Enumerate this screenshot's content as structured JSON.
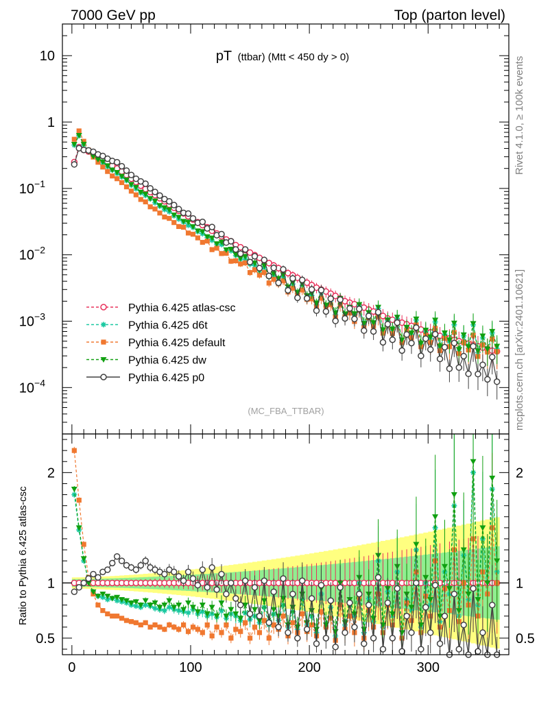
{
  "header": {
    "left": "7000 GeV pp",
    "right": "Top (parton level)"
  },
  "side": {
    "rivet": "Rivet 4.1.0, ≥ 100k events",
    "mcplots": "mcplots.cern.ch [arXiv:2401.10621]"
  },
  "chart_data": {
    "type": "scatter",
    "title_main": "pT",
    "title_sub": "(ttbar) (Mtt < 450 dy > 0)",
    "analysis_tag": "(MC_FBA_TTBAR)",
    "x_ticks": [
      "0",
      "100",
      "200",
      "300"
    ],
    "xlim": [
      -8,
      368
    ],
    "upper": {
      "yscale": "log",
      "ylim": [
        2e-05,
        30
      ],
      "y_tick_labels": [
        {
          "value": 10,
          "base": "10",
          "exp": ""
        },
        {
          "value": 1,
          "base": "1",
          "exp": ""
        },
        {
          "value": 0.1,
          "base": "10",
          "exp": "−1"
        },
        {
          "value": 0.01,
          "base": "10",
          "exp": "−2"
        },
        {
          "value": 0.001,
          "base": "10",
          "exp": "−3"
        },
        {
          "value": 0.0001,
          "base": "10",
          "exp": "−4"
        }
      ]
    },
    "ratio": {
      "ylabel": "Ratio to Pythia 6.425 atlas-csc",
      "ylim": [
        0.35,
        2.35
      ],
      "y_ticks": [
        "0.5",
        "1",
        "2"
      ],
      "reference": 1.0
    },
    "legend": [
      "Pythia 6.425 atlas-csc",
      "Pythia 6.425 d6t",
      "Pythia 6.425 default",
      "Pythia 6.425 dw",
      "Pythia 6.425 p0"
    ],
    "series": [
      {
        "name": "Pythia 6.425 atlas-csc",
        "color": "#e8305a",
        "marker": "open-circle",
        "line": "dashed",
        "x_start": 2,
        "x_step": 4,
        "values": [
          0.25,
          0.42,
          0.38,
          0.36,
          0.33,
          0.31,
          0.28,
          0.25,
          0.22,
          0.2,
          0.18,
          0.16,
          0.14,
          0.125,
          0.11,
          0.098,
          0.088,
          0.079,
          0.071,
          0.064,
          0.057,
          0.051,
          0.046,
          0.042,
          0.038,
          0.034,
          0.031,
          0.028,
          0.026,
          0.023,
          0.021,
          0.019,
          0.017,
          0.016,
          0.014,
          0.013,
          0.0118,
          0.0108,
          0.0099,
          0.009,
          0.0082,
          0.0075,
          0.0069,
          0.0063,
          0.0058,
          0.0053,
          0.0049,
          0.0045,
          0.0041,
          0.0038,
          0.0035,
          0.0032,
          0.003,
          0.0028,
          0.0026,
          0.0024,
          0.0022,
          0.002,
          0.0019,
          0.0018,
          0.0017,
          0.0016,
          0.0015,
          0.0014,
          0.0013,
          0.0012,
          0.0011,
          0.00105,
          0.001,
          0.00095,
          0.0009,
          0.00085,
          0.0008,
          0.00075,
          0.0007,
          0.00068,
          0.00065,
          0.0006,
          0.00058,
          0.00055,
          0.00052,
          0.0005,
          0.00048,
          0.00046,
          0.00044,
          0.00042,
          0.0004,
          0.00038,
          0.00036,
          0.00035
        ]
      },
      {
        "name": "Pythia 6.425 d6t",
        "color": "#18c8a0",
        "marker": "star",
        "line": "dashed",
        "ratio": [
          1.8,
          1.48,
          1.2,
          1.02,
          0.92,
          0.88,
          0.87,
          0.85,
          0.86,
          0.84,
          0.83,
          0.82,
          0.8,
          0.79,
          0.78,
          0.8,
          0.79,
          0.77,
          0.76,
          0.75,
          0.78,
          0.76,
          0.75,
          0.74,
          0.73,
          0.76,
          0.72,
          0.74,
          0.7,
          0.72,
          0.69,
          0.75,
          0.68,
          0.72,
          0.7,
          0.66,
          0.73,
          0.67,
          0.7,
          0.64,
          0.78,
          0.62,
          0.72,
          0.66,
          0.8,
          0.6,
          0.74,
          0.58,
          0.85,
          0.62,
          0.7,
          0.55,
          0.9,
          0.6,
          0.78,
          0.52,
          0.95,
          0.62,
          0.8,
          0.7,
          1.0,
          0.55,
          0.86,
          0.65,
          1.2,
          0.6,
          0.92,
          0.7,
          1.1,
          0.5,
          0.85,
          0.75,
          1.3,
          0.6,
          1.0,
          0.8,
          1.5,
          0.65,
          1.1,
          0.9,
          1.7,
          0.7,
          1.25,
          0.85,
          2.0,
          0.8,
          1.4,
          0.9,
          1.85,
          1.1
        ]
      },
      {
        "name": "Pythia 6.425 default",
        "color": "#f07830",
        "marker": "square",
        "line": "dashed",
        "ratio": [
          2.2,
          1.75,
          1.35,
          1.05,
          0.9,
          0.8,
          0.75,
          0.72,
          0.7,
          0.7,
          0.68,
          0.66,
          0.65,
          0.64,
          0.62,
          0.64,
          0.6,
          0.62,
          0.6,
          0.58,
          0.62,
          0.6,
          0.58,
          0.62,
          0.56,
          0.6,
          0.58,
          0.55,
          0.62,
          0.52,
          0.6,
          0.55,
          0.62,
          0.5,
          0.58,
          0.56,
          0.64,
          0.5,
          0.6,
          0.55,
          0.66,
          0.5,
          0.62,
          0.58,
          0.7,
          0.52,
          0.64,
          0.55,
          0.72,
          0.56,
          0.62,
          0.52,
          0.74,
          0.6,
          0.68,
          0.48,
          0.8,
          0.58,
          0.7,
          0.55,
          0.86,
          0.5,
          0.75,
          0.6,
          0.9,
          0.55,
          0.8,
          0.62,
          0.95,
          0.5,
          0.82,
          0.66,
          1.1,
          0.55,
          0.88,
          0.7,
          1.2,
          0.6,
          0.95,
          0.75,
          1.3,
          0.65,
          1.0,
          0.8,
          1.4,
          0.7,
          1.1,
          0.9,
          1.5,
          1.0
        ]
      },
      {
        "name": "Pythia 6.425 dw",
        "color": "#10a010",
        "marker": "triangle-down",
        "line": "dashed",
        "ratio": [
          1.85,
          1.5,
          1.22,
          1.0,
          0.92,
          0.88,
          0.9,
          0.88,
          0.86,
          0.87,
          0.85,
          0.84,
          0.82,
          0.83,
          0.8,
          0.84,
          0.8,
          0.82,
          0.78,
          0.8,
          0.84,
          0.78,
          0.8,
          0.76,
          0.82,
          0.78,
          0.74,
          0.8,
          0.72,
          0.78,
          0.7,
          0.82,
          0.7,
          0.76,
          0.72,
          0.68,
          0.8,
          0.7,
          0.76,
          0.66,
          0.84,
          0.64,
          0.76,
          0.7,
          0.86,
          0.62,
          0.78,
          0.6,
          0.9,
          0.64,
          0.75,
          0.58,
          0.95,
          0.62,
          0.82,
          0.56,
          1.0,
          0.64,
          0.85,
          0.72,
          1.05,
          0.58,
          0.9,
          0.68,
          1.25,
          0.62,
          0.95,
          0.72,
          1.15,
          0.55,
          0.9,
          0.78,
          1.35,
          0.62,
          1.05,
          0.85,
          1.6,
          0.7,
          1.15,
          0.95,
          1.8,
          0.75,
          1.3,
          0.9,
          2.1,
          0.85,
          1.5,
          1.0,
          1.95,
          1.2
        ]
      },
      {
        "name": "Pythia 6.425 p0",
        "color": "#404040",
        "marker": "open-circle",
        "line": "solid",
        "ratio": [
          0.92,
          0.96,
          1.0,
          1.04,
          1.08,
          1.05,
          1.1,
          1.12,
          1.18,
          1.24,
          1.2,
          1.16,
          1.14,
          1.12,
          1.16,
          1.2,
          1.14,
          1.12,
          1.1,
          1.08,
          1.12,
          1.1,
          1.06,
          1.02,
          1.1,
          1.04,
          0.98,
          1.12,
          0.96,
          1.14,
          0.94,
          1.08,
          0.9,
          1.0,
          0.86,
          0.8,
          1.02,
          0.72,
          0.96,
          0.7,
          1.02,
          0.64,
          0.92,
          0.6,
          1.04,
          0.55,
          0.9,
          0.5,
          1.02,
          0.58,
          0.86,
          0.45,
          0.98,
          0.5,
          0.84,
          0.42,
          0.96,
          0.55,
          0.82,
          0.6,
          0.9,
          0.45,
          0.8,
          0.5,
          1.05,
          0.4,
          0.82,
          0.5,
          0.95,
          0.38,
          0.7,
          0.55,
          1.0,
          0.4,
          0.78,
          0.55,
          0.98,
          0.45,
          0.7,
          0.35,
          0.9,
          0.4,
          0.62,
          0.35,
          0.95,
          0.38,
          0.55,
          0.35,
          0.8,
          0.35
        ]
      }
    ]
  }
}
